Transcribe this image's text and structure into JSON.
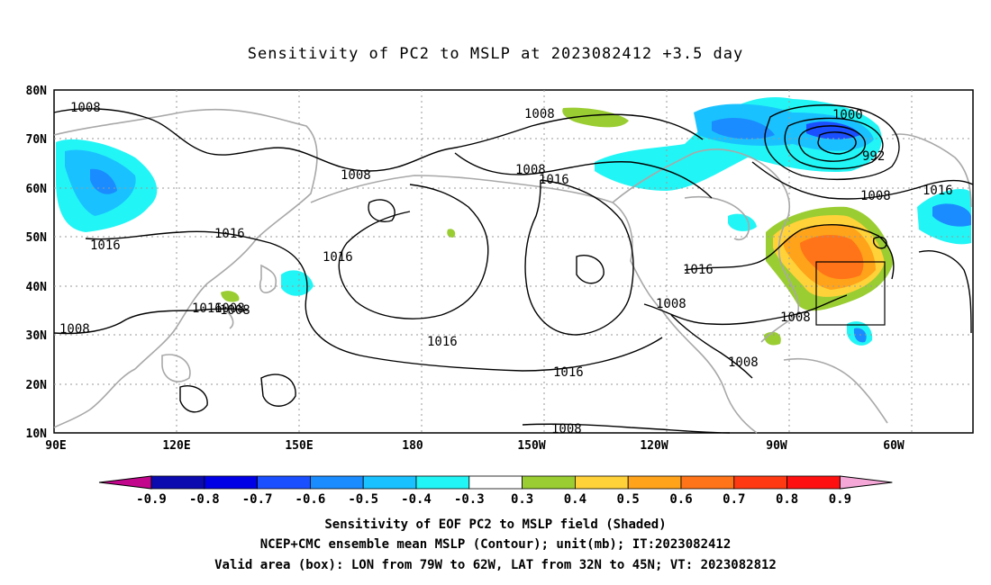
{
  "title": "Sensitivity of PC2 to MSLP at 2023082412 +3.5 day",
  "lat_labels": [
    "80N",
    "70N",
    "60N",
    "50N",
    "40N",
    "30N",
    "20N",
    "10N"
  ],
  "lon_labels": [
    "90E",
    "120E",
    "150E",
    "180",
    "150W",
    "120W",
    "90W",
    "60W"
  ],
  "contour_labels": [
    "1008",
    "1016",
    "1008",
    "1008",
    "1016",
    "1008",
    "1016",
    "1016",
    "1008",
    "1016",
    "1016",
    "1008",
    "1008",
    "1008",
    "1016",
    "1008",
    "1016",
    "1008",
    "1000",
    "992",
    "1008",
    "1016",
    "1008"
  ],
  "colorbar": {
    "labels": [
      "-0.9",
      "-0.8",
      "-0.7",
      "-0.6",
      "-0.5",
      "-0.4",
      "-0.3",
      "0.3",
      "0.4",
      "0.5",
      "0.6",
      "0.7",
      "0.8",
      "0.9"
    ],
    "colors": [
      "#c2078c",
      "#0b0bb0",
      "#0000e6",
      "#1a4fff",
      "#1a8cff",
      "#19c2ff",
      "#22f5f5",
      "#ffffff",
      "#9acd32",
      "#ffd23a",
      "#ffa31a",
      "#ff7418",
      "#ff3a12",
      "#ff1010",
      "#f5a8d8"
    ]
  },
  "captions": [
    "Sensitivity of EOF PC2 to MSLP field (Shaded)",
    "NCEP+CMC ensemble mean MSLP (Contour); unit(mb); IT:2023082412",
    "Valid area (box): LON from 79W to 62W, LAT from 32N to 45N; VT: 2023082812"
  ]
}
